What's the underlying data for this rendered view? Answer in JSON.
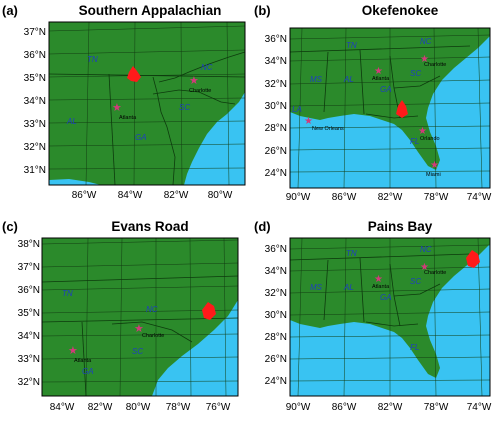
{
  "colors": {
    "land": "#2b8a2b",
    "water": "#39c3f2",
    "border": "#0d3b0d",
    "site": "#ff1a1a",
    "city_star": "#d23a7a",
    "state_label": "#1f3fbf"
  },
  "panels": [
    {
      "letter": "(a)",
      "title": "Southern Appalachian",
      "lat_ticks": [
        "37°N",
        "36°N",
        "35°N",
        "34°N",
        "33°N",
        "32°N",
        "31°N"
      ],
      "lon_ticks": [
        "86°W",
        "84°W",
        "82°W",
        "80°W"
      ],
      "states": [
        "TN",
        "NC",
        "SC",
        "AL",
        "GA"
      ],
      "cities": [
        "Charlotte",
        "Atlanta"
      ]
    },
    {
      "letter": "(b)",
      "title": "Okefenokee",
      "lat_ticks": [
        "36°N",
        "34°N",
        "32°N",
        "30°N",
        "28°N",
        "26°N",
        "24°N"
      ],
      "lon_ticks": [
        "90°W",
        "86°W",
        "82°W",
        "78°W",
        "74°W"
      ],
      "states": [
        "TN",
        "NC",
        "SC",
        "MS",
        "AL",
        "GA",
        "FL",
        "LA"
      ],
      "cities": [
        "Charlotte",
        "Atlanta",
        "New Orleans",
        "Orlando",
        "Miami"
      ]
    },
    {
      "letter": "(c)",
      "title": "Evans Road",
      "lat_ticks": [
        "38°N",
        "37°N",
        "36°N",
        "35°N",
        "34°N",
        "33°N",
        "32°N"
      ],
      "lon_ticks": [
        "84°W",
        "82°W",
        "80°W",
        "78°W",
        "76°W"
      ],
      "states": [
        "TN",
        "NC",
        "SC",
        "GA"
      ],
      "cities": [
        "Charlotte",
        "Atlanta"
      ]
    },
    {
      "letter": "(d)",
      "title": "Pains Bay",
      "lat_ticks": [
        "36°N",
        "34°N",
        "32°N",
        "30°N",
        "28°N",
        "26°N",
        "24°N"
      ],
      "lon_ticks": [
        "90°W",
        "86°W",
        "82°W",
        "78°W",
        "74°W"
      ],
      "states": [
        "TN",
        "NC",
        "SC",
        "MS",
        "AL",
        "GA",
        "FL"
      ],
      "cities": [
        "Charlotte",
        "Atlanta"
      ]
    }
  ]
}
